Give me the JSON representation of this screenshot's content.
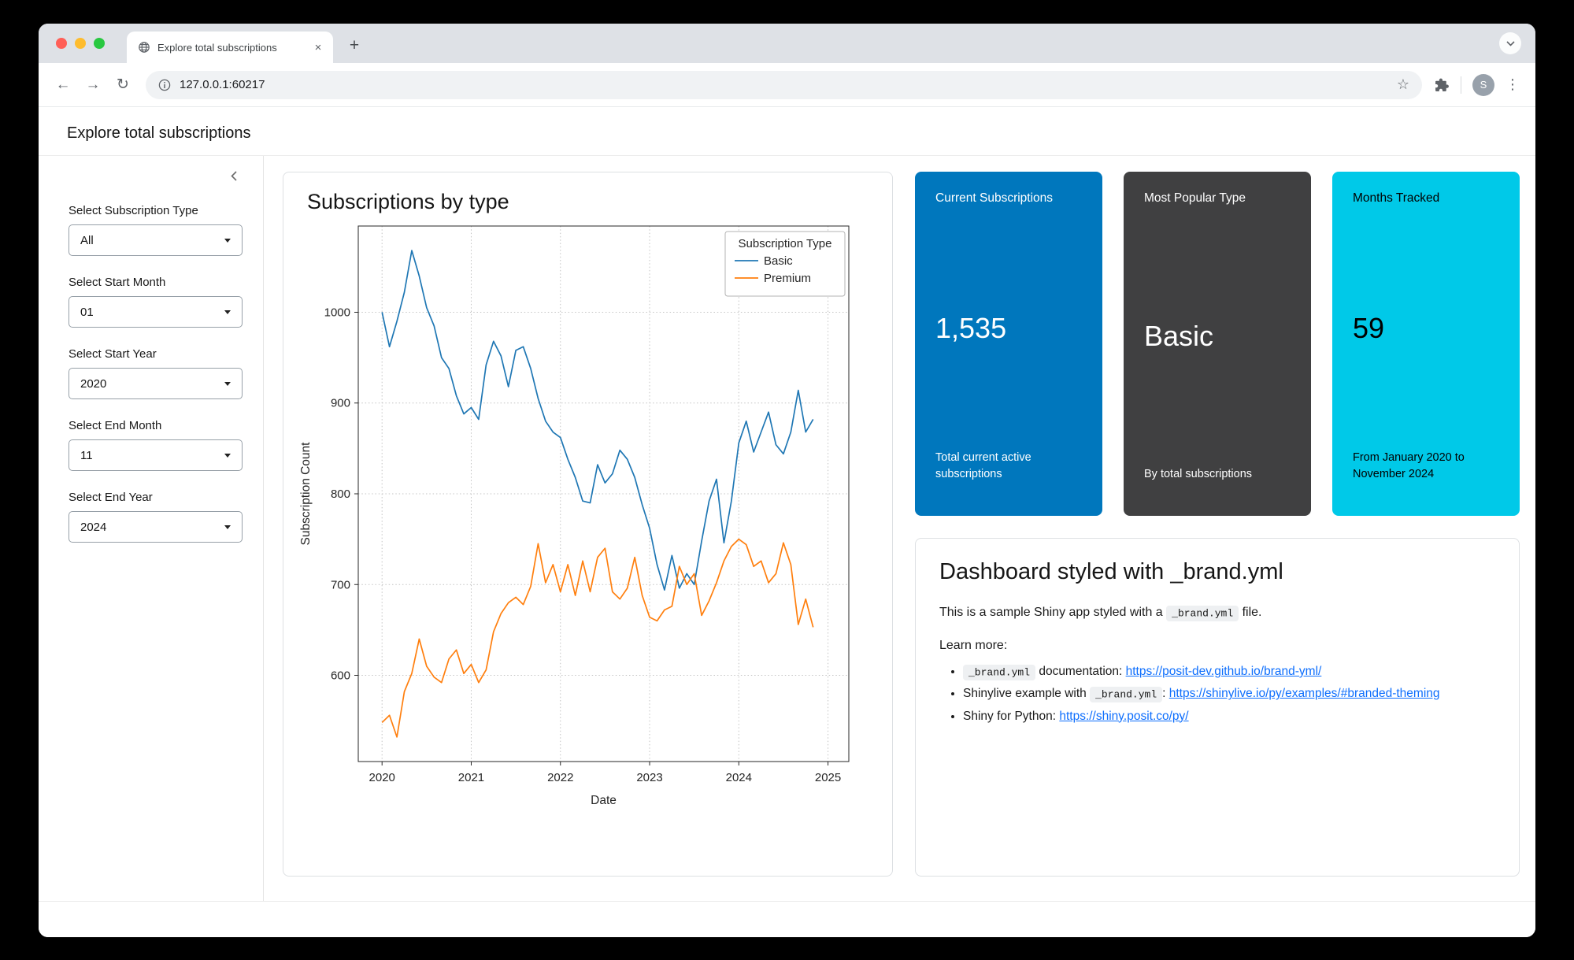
{
  "browser": {
    "tab_title": "Explore total subscriptions",
    "url": "127.0.0.1:60217",
    "avatar_letter": "S"
  },
  "icons": {
    "back": "←",
    "forward": "→",
    "reload": "↻",
    "star": "☆",
    "kebab": "⋮",
    "new_tab": "+",
    "close_tab": "×"
  },
  "header": {
    "title": "Explore total subscriptions"
  },
  "sidebar": {
    "controls": [
      {
        "label": "Select Subscription Type",
        "value": "All"
      },
      {
        "label": "Select Start Month",
        "value": "01"
      },
      {
        "label": "Select Start Year",
        "value": "2020"
      },
      {
        "label": "Select End Month",
        "value": "11"
      },
      {
        "label": "Select End Year",
        "value": "2024"
      }
    ]
  },
  "chart_data": {
    "type": "line",
    "title": "Subscriptions by type",
    "xlabel": "Date",
    "ylabel": "Subscription Count",
    "legend_title": "Subscription Type",
    "legend_position": "upper right",
    "grid": true,
    "x_start": "2020-01",
    "x_tick_months": [
      0,
      12,
      24,
      36,
      48,
      60
    ],
    "x_tick_labels": [
      "2020",
      "2021",
      "2022",
      "2023",
      "2024",
      "2025"
    ],
    "y_ticks": [
      600,
      700,
      800,
      900,
      1000
    ],
    "xlim": [
      -3.2,
      62.8
    ],
    "ylim": [
      505,
      1095
    ],
    "series": [
      {
        "name": "Basic",
        "color": "#1f77b4",
        "values": [
          1000,
          962,
          990,
          1022,
          1068,
          1040,
          1005,
          985,
          950,
          938,
          908,
          888,
          895,
          882,
          942,
          968,
          952,
          918,
          958,
          962,
          938,
          905,
          880,
          868,
          862,
          838,
          818,
          792,
          790,
          832,
          812,
          822,
          848,
          838,
          818,
          788,
          762,
          722,
          694,
          732,
          696,
          712,
          700,
          748,
          792,
          816,
          746,
          792,
          856,
          880,
          846,
          868,
          890,
          854,
          844,
          868,
          914,
          868,
          882
        ]
      },
      {
        "name": "Premium",
        "color": "#ff7f0e",
        "values": [
          548,
          556,
          532,
          582,
          602,
          640,
          610,
          598,
          592,
          618,
          628,
          602,
          612,
          592,
          606,
          648,
          668,
          680,
          686,
          678,
          698,
          745,
          702,
          722,
          692,
          722,
          688,
          726,
          692,
          730,
          740,
          692,
          684,
          696,
          730,
          688,
          664,
          660,
          672,
          676,
          720,
          700,
          712,
          666,
          682,
          702,
          726,
          742,
          750,
          744,
          720,
          726,
          702,
          712,
          746,
          722,
          656,
          684,
          653
        ]
      }
    ]
  },
  "value_boxes": [
    {
      "title": "Current Subscriptions",
      "value": "1,535",
      "caption": "Total current active subscriptions",
      "bg": "#0077bd",
      "fg": "#ffffff"
    },
    {
      "title": "Most Popular Type",
      "value": "Basic",
      "caption": "By total subscriptions",
      "bg": "#404041",
      "fg": "#ffffff"
    },
    {
      "title": "Months Tracked",
      "value": "59",
      "caption": "From January 2020 to November 2024",
      "bg": "#00c9e8",
      "fg": "#000000"
    }
  ],
  "info_card": {
    "title": "Dashboard styled with _brand.yml",
    "intro_prefix": "This is a sample Shiny app styled with a ",
    "intro_code": "_brand.yml",
    "intro_suffix": " file.",
    "learn_more": "Learn more:",
    "link_color": "#0d6efd",
    "bullets": [
      {
        "code": "_brand.yml",
        "text": " documentation: ",
        "link": "https://posit-dev.github.io/brand-yml/"
      },
      {
        "text1": "Shinylive example with ",
        "code": "_brand.yml",
        "text2": ": ",
        "link": "https://shinylive.io/py/examples/#branded-theming"
      },
      {
        "text1": "Shiny for Python: ",
        "link": "https://shiny.posit.co/py/"
      }
    ]
  }
}
